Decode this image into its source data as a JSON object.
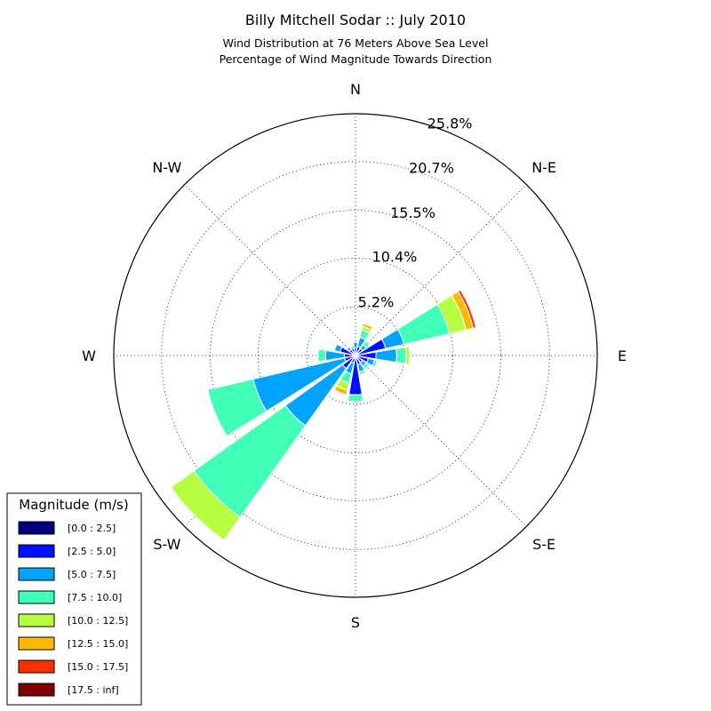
{
  "chart_data": {
    "type": "windrose",
    "title": "Billy Mitchell Sodar :: July 2010",
    "subtitle_lines": [
      "Wind Distribution at 76 Meters Above Sea Level",
      "Percentage of Wind Magnitude Towards Direction"
    ],
    "directions": [
      "N",
      "N-E",
      "E",
      "S-E",
      "S",
      "S-W",
      "W",
      "N-W"
    ],
    "radial_ticks": [
      "5.2%",
      "10.4%",
      "15.5%",
      "20.7%",
      "25.8%"
    ],
    "radial_tick_values": [
      5.2,
      10.4,
      15.5,
      20.7
    ],
    "radial_max": 25.8,
    "grid": true,
    "legend": {
      "title": "Magnitude (m/s)",
      "placement": "lower-left",
      "bins": [
        "[0.0 : 2.5]",
        "[2.5 : 5.0]",
        "[5.0 : 7.5]",
        "[7.5 : 10.0]",
        "[10.0 : 12.5]",
        "[12.5 : 15.0]",
        "[15.0 : 17.5]",
        "[17.5 : inf]"
      ],
      "colors": [
        "#00007f",
        "#0010ff",
        "#00a4ff",
        "#40ffb6",
        "#b6ff40",
        "#ffb900",
        "#ff3000",
        "#7f0000"
      ]
    },
    "sectors": [
      {
        "angle": 0.0,
        "values": [
          0.2,
          0.6,
          0.6,
          0.0,
          0.0,
          0.0,
          0.0,
          0.0
        ]
      },
      {
        "angle": 22.5,
        "values": [
          0.2,
          0.8,
          1.0,
          0.8,
          0.4,
          0.3,
          0.0,
          0.0
        ]
      },
      {
        "angle": 45.0,
        "values": [
          0.2,
          0.7,
          0.5,
          0.5,
          0.0,
          0.0,
          0.0,
          0.0
        ]
      },
      {
        "angle": 67.5,
        "values": [
          0.3,
          3.0,
          2.0,
          5.0,
          1.8,
          0.8,
          0.3,
          0.1
        ]
      },
      {
        "angle": 90.0,
        "values": [
          0.2,
          2.0,
          2.2,
          1.0,
          0.4,
          0.0,
          0.0,
          0.0
        ]
      },
      {
        "angle": 112.5,
        "values": [
          0.2,
          1.2,
          0.7,
          0.3,
          0.0,
          0.0,
          0.0,
          0.0
        ]
      },
      {
        "angle": 135.0,
        "values": [
          0.2,
          0.7,
          0.5,
          0.4,
          0.0,
          0.0,
          0.0,
          0.0
        ]
      },
      {
        "angle": 157.5,
        "values": [
          0.2,
          0.8,
          0.8,
          0.3,
          0.0,
          0.0,
          0.0,
          0.0
        ]
      },
      {
        "angle": 180.0,
        "values": [
          0.2,
          4.0,
          0.0,
          0.7,
          0.0,
          0.0,
          0.0,
          0.0
        ]
      },
      {
        "angle": 202.5,
        "values": [
          0.2,
          0.6,
          1.2,
          1.0,
          0.8,
          0.5,
          0.0,
          0.0
        ]
      },
      {
        "angle": 225.0,
        "values": [
          0.2,
          1.5,
          7.5,
          12.0,
          3.0,
          0.0,
          0.0,
          0.0
        ]
      },
      {
        "angle": 247.5,
        "values": [
          0.2,
          1.0,
          10.0,
          5.0,
          0.0,
          0.0,
          0.0,
          0.0
        ]
      },
      {
        "angle": 270.0,
        "values": [
          0.2,
          1.0,
          2.0,
          0.8,
          0.0,
          0.0,
          0.0,
          0.0
        ]
      },
      {
        "angle": 292.5,
        "values": [
          0.2,
          1.5,
          0.6,
          0.0,
          0.0,
          0.0,
          0.0,
          0.0
        ]
      },
      {
        "angle": 315.0,
        "values": [
          0.2,
          0.6,
          0.3,
          0.0,
          0.0,
          0.0,
          0.0,
          0.0
        ]
      },
      {
        "angle": 337.5,
        "values": [
          0.2,
          0.6,
          0.2,
          0.0,
          0.0,
          0.0,
          0.0,
          0.0
        ]
      }
    ]
  }
}
